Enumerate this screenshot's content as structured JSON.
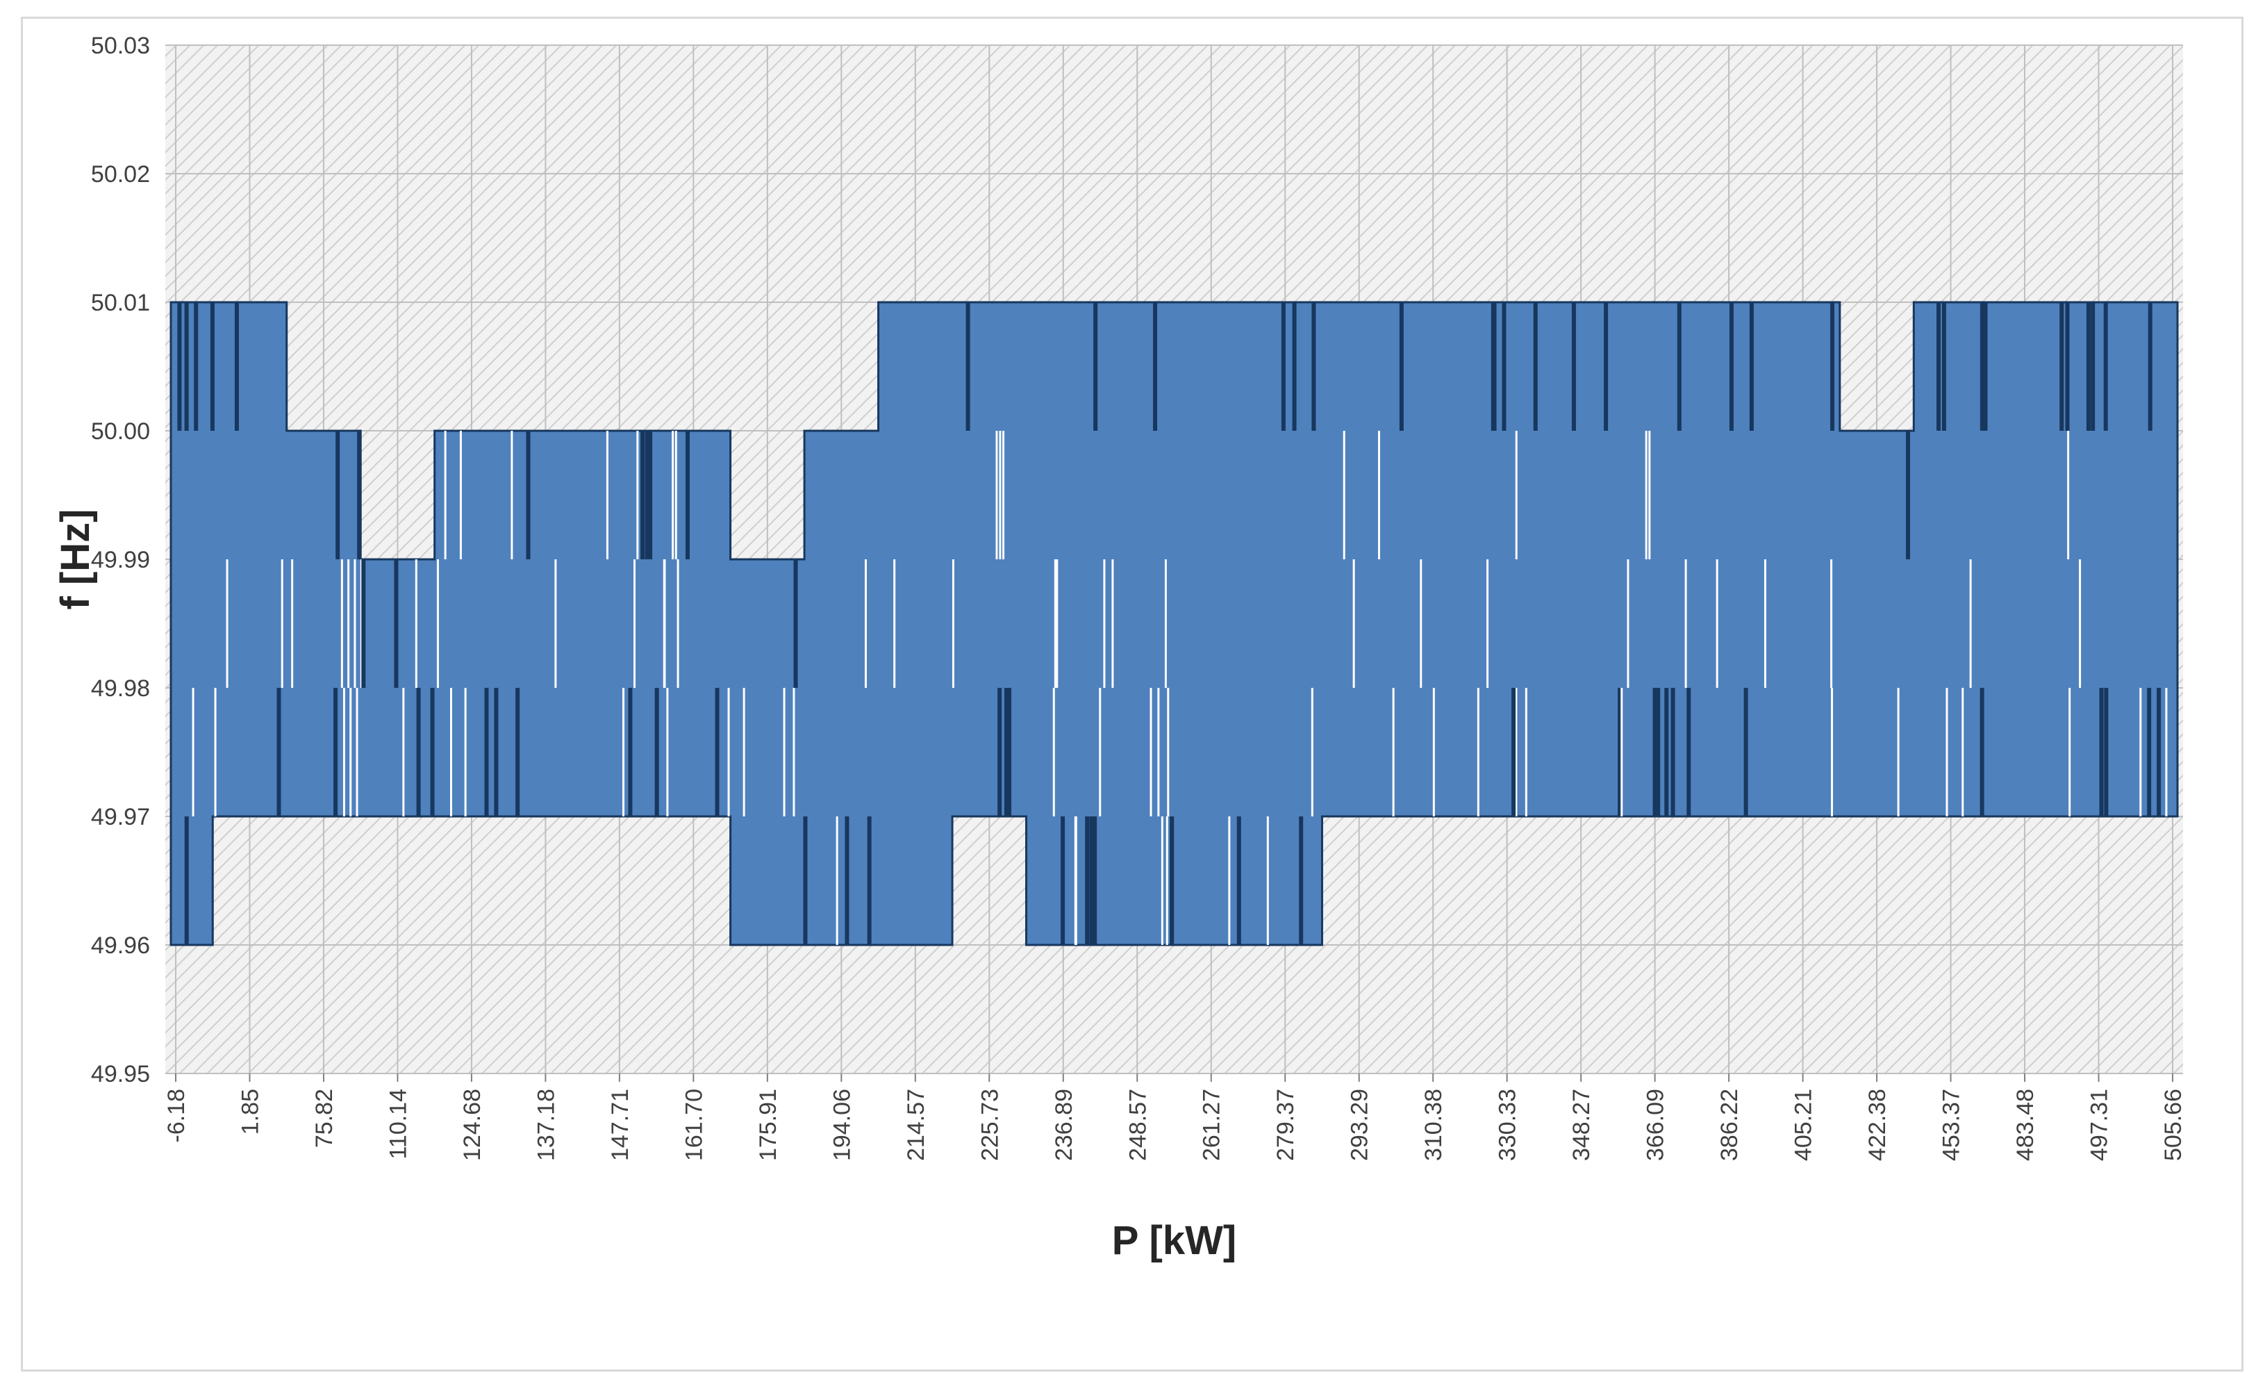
{
  "chart_data": {
    "type": "area",
    "title": "",
    "xlabel": "P [kW]",
    "ylabel": "f [Hz]",
    "ylim": [
      49.95,
      50.03
    ],
    "y_ticks": [
      "49.95",
      "49.96",
      "49.97",
      "49.98",
      "49.99",
      "50.00",
      "50.01",
      "50.02",
      "50.03"
    ],
    "x_ticks": [
      "-6.18",
      "1.85",
      "75.82",
      "110.14",
      "124.68",
      "137.18",
      "147.71",
      "161.70",
      "175.91",
      "194.06",
      "214.57",
      "225.73",
      "236.89",
      "248.57",
      "261.27",
      "279.37",
      "293.29",
      "310.38",
      "330.33",
      "348.27",
      "366.09",
      "386.22",
      "405.21",
      "422.38",
      "453.37",
      "483.48",
      "497.31",
      "505.66"
    ],
    "grid": true,
    "legend": "none",
    "series": [
      {
        "upper": [
          50.01,
          50.01,
          50.0,
          49.99,
          50.0,
          50.0,
          50.0,
          50.0,
          49.99,
          50.0,
          50.01,
          50.01,
          50.01,
          50.01,
          50.01,
          50.01,
          50.01,
          50.01,
          50.01,
          50.01,
          50.01,
          50.01,
          50.01,
          50.0,
          50.01,
          50.01,
          50.01,
          50.01
        ],
        "lower": [
          49.96,
          49.97,
          49.97,
          49.97,
          49.97,
          49.97,
          49.97,
          49.97,
          49.96,
          49.96,
          49.96,
          49.97,
          49.96,
          49.96,
          49.96,
          49.96,
          49.97,
          49.97,
          49.97,
          49.97,
          49.97,
          49.97,
          49.97,
          49.97,
          49.97,
          49.97,
          49.97,
          49.97
        ]
      }
    ],
    "colors": {
      "fill": "#4f81bd",
      "edge": "#17375e",
      "grid_hatch": "#c9c9c9",
      "grid_line": "#bfbfbf"
    }
  }
}
